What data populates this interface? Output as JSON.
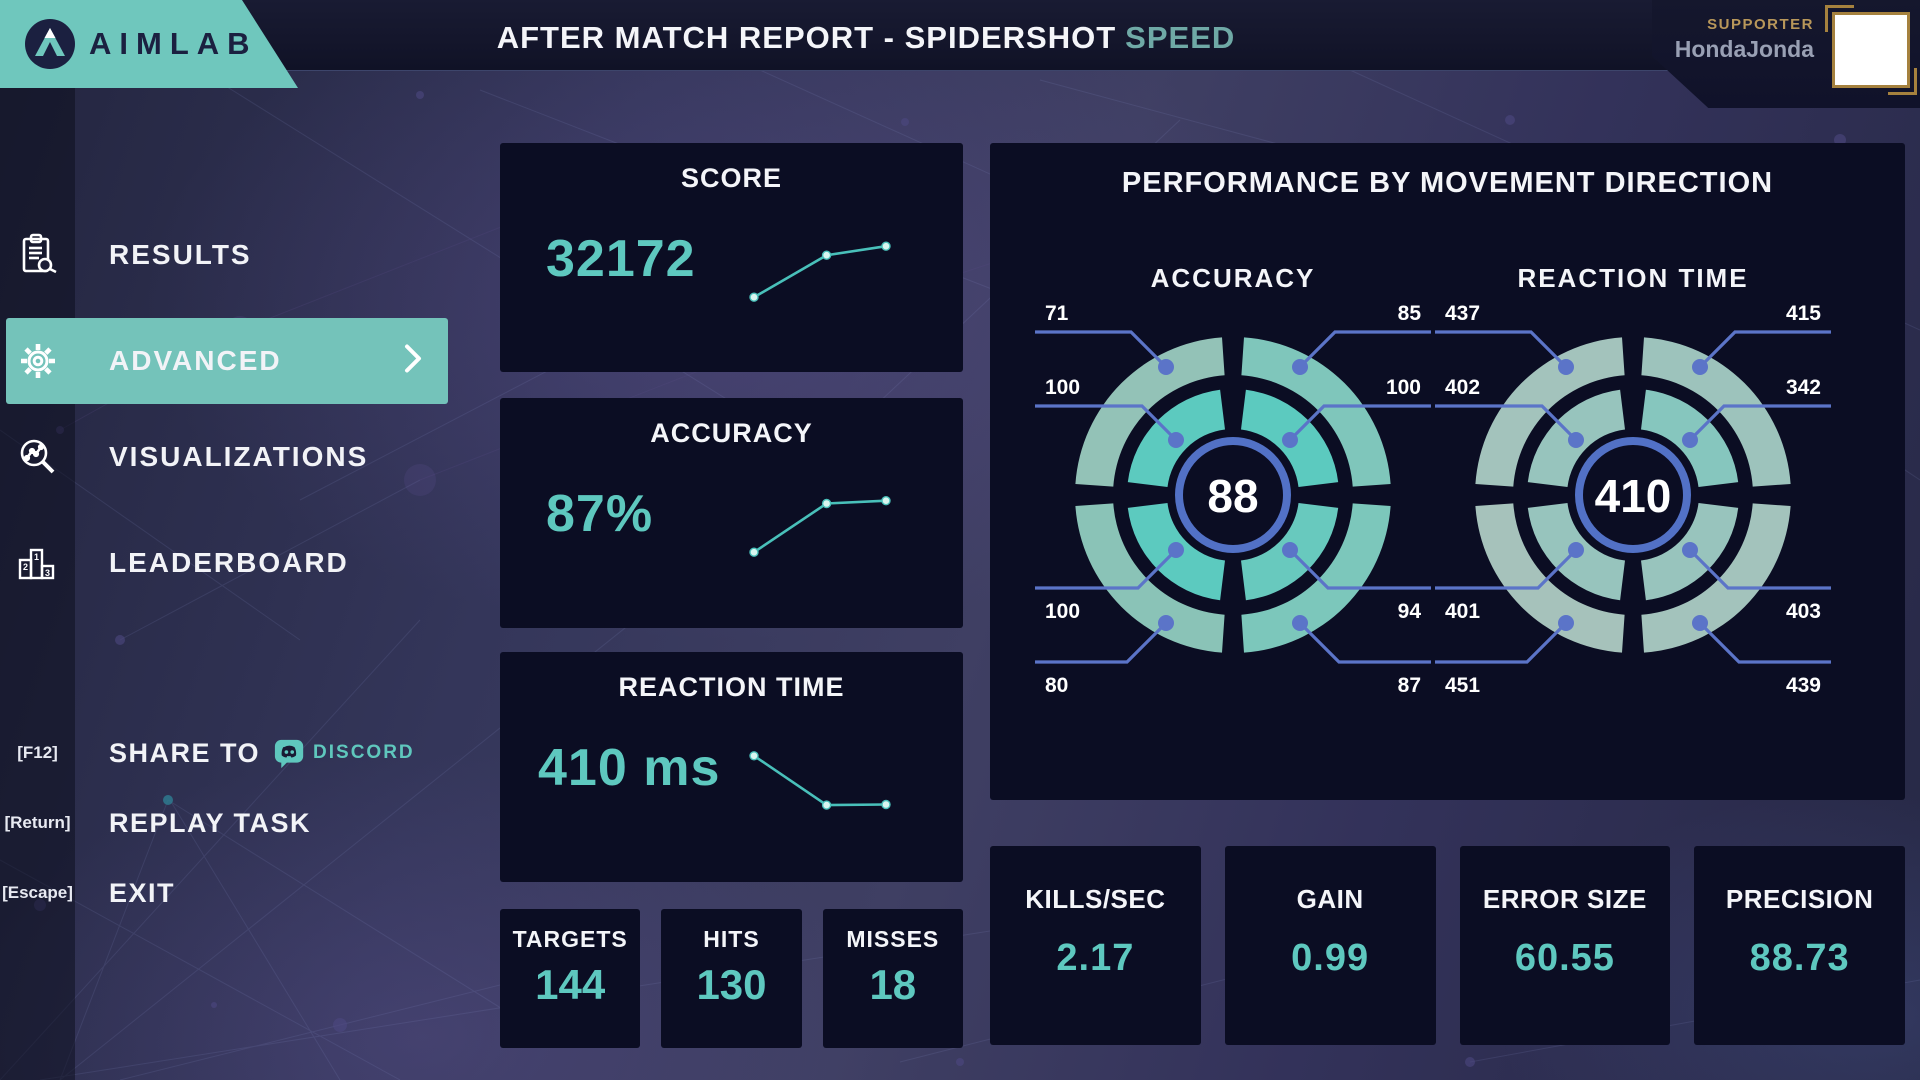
{
  "header": {
    "logo_text": "AIMLAB",
    "title": "AFTER MATCH REPORT - SPIDERSHOT",
    "title_accent": "SPEED",
    "supporter": {
      "label": "SUPPORTER",
      "name": "HondaJonda"
    }
  },
  "sidebar": {
    "nav": [
      {
        "label": "RESULTS",
        "selected": false
      },
      {
        "label": "ADVANCED",
        "selected": true
      },
      {
        "label": "VISUALIZATIONS",
        "selected": false
      },
      {
        "label": "LEADERBOARD",
        "selected": false
      }
    ],
    "shortcuts": [
      {
        "key": "[F12]",
        "label": "SHARE TO",
        "brand": "DISCORD"
      },
      {
        "key": "[Return]",
        "label": "REPLAY TASK",
        "brand": ""
      },
      {
        "key": "[Escape]",
        "label": "EXIT",
        "brand": ""
      }
    ]
  },
  "summary_cards": [
    {
      "title": "SCORE",
      "value": "32172"
    },
    {
      "title": "ACCURACY",
      "value": "87%"
    },
    {
      "title": "REACTION TIME",
      "value": "410 ms"
    }
  ],
  "counters": [
    {
      "label": "TARGETS",
      "value": "144"
    },
    {
      "label": "HITS",
      "value": "130"
    },
    {
      "label": "MISSES",
      "value": "18"
    }
  ],
  "direction_panel": {
    "title": "PERFORMANCE BY MOVEMENT DIRECTION"
  },
  "bottom_stats": [
    {
      "label": "KILLS/SEC",
      "value": "2.17"
    },
    {
      "label": "GAIN",
      "value": "0.99"
    },
    {
      "label": "ERROR SIZE",
      "value": "60.55"
    },
    {
      "label": "PRECISION",
      "value": "88.73"
    }
  ],
  "colors": {
    "accent_teal": "#6FC7BD",
    "value_teal": "#5EC8BF",
    "callout_blue": "#5B74C8",
    "center_ring_blue": "#5271C6",
    "gold": "#B8975A"
  },
  "chart_data": [
    {
      "type": "radial-donut",
      "title": "ACCURACY",
      "center_value": "88",
      "callout_color": "#5B74C8",
      "center_ring_color": "#5271C6",
      "segments": {
        "outer_top_left": {
          "value": "71",
          "color": "#93C2B7"
        },
        "outer_top_right": {
          "value": "85",
          "color": "#7FC6BB"
        },
        "inner_top_left": {
          "value": "100",
          "color": "#5CCABF"
        },
        "inner_top_right": {
          "value": "100",
          "color": "#5CCABF"
        },
        "inner_bottom_left": {
          "value": "100",
          "color": "#5CCABF"
        },
        "inner_bottom_right": {
          "value": "94",
          "color": "#68C9BE"
        },
        "outer_bottom_left": {
          "value": "80",
          "color": "#8AC3B7"
        },
        "outer_bottom_right": {
          "value": "87",
          "color": "#7CC7BB"
        }
      }
    },
    {
      "type": "radial-donut",
      "title": "REACTION TIME",
      "center_value": "410",
      "callout_color": "#5B74C8",
      "center_ring_color": "#5271C6",
      "segments": {
        "outer_top_left": {
          "value": "437",
          "color": "#A3C3BC"
        },
        "outer_top_right": {
          "value": "415",
          "color": "#9DC3BC"
        },
        "inner_top_left": {
          "value": "402",
          "color": "#97C4BD"
        },
        "inner_top_right": {
          "value": "342",
          "color": "#86C6BE"
        },
        "inner_bottom_left": {
          "value": "401",
          "color": "#97C4BD"
        },
        "inner_bottom_right": {
          "value": "403",
          "color": "#98C4BD"
        },
        "outer_bottom_left": {
          "value": "451",
          "color": "#A6C2BB"
        },
        "outer_bottom_right": {
          "value": "439",
          "color": "#A3C3BC"
        }
      }
    },
    {
      "type": "line",
      "name": "score-trend",
      "points": [
        [
          0,
          0.95
        ],
        [
          0.55,
          0.2
        ],
        [
          1,
          0.04
        ]
      ]
    },
    {
      "type": "line",
      "name": "accuracy-trend",
      "points": [
        [
          0,
          0.95
        ],
        [
          0.55,
          0.08
        ],
        [
          1,
          0.03
        ]
      ]
    },
    {
      "type": "line",
      "name": "reaction-time-trend",
      "points": [
        [
          0,
          0.05
        ],
        [
          0.55,
          0.93
        ],
        [
          1,
          0.92
        ]
      ]
    }
  ]
}
